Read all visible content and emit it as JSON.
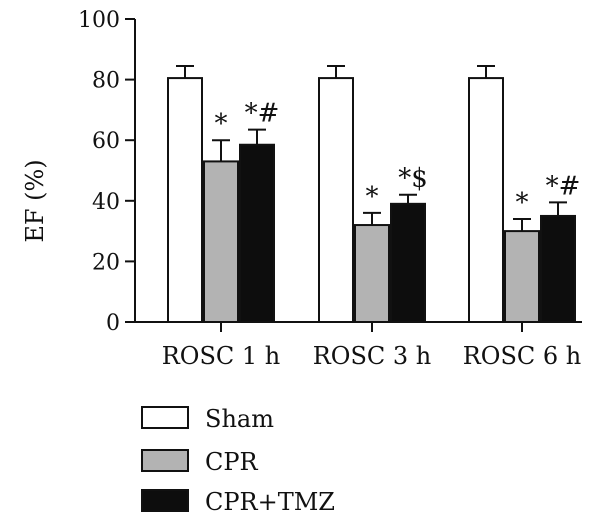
{
  "chart_data": {
    "type": "bar",
    "title": "",
    "xlabel": "",
    "ylabel": "EF (%)",
    "ylim": [
      0,
      100
    ],
    "yticks": [
      0,
      20,
      40,
      60,
      80,
      100
    ],
    "categories": [
      "ROSC 1 h",
      "ROSC 3 h",
      "ROSC 6 h"
    ],
    "series": [
      {
        "name": "Sham",
        "color": "#ffffff",
        "values": [
          80.5,
          80.5,
          80.5
        ],
        "errors": [
          4,
          4,
          4
        ],
        "annotations": [
          "",
          "",
          ""
        ]
      },
      {
        "name": "CPR",
        "color": "#b3b3b3",
        "values": [
          53,
          32,
          30
        ],
        "errors": [
          7,
          4,
          4
        ],
        "annotations": [
          "*",
          "*",
          "*"
        ]
      },
      {
        "name": "CPR+TMZ",
        "color": "#0d0d0d",
        "values": [
          58.5,
          39,
          35
        ],
        "errors": [
          5,
          3,
          4.5
        ],
        "annotations": [
          "*#",
          "*$",
          "*#"
        ]
      }
    ],
    "legend_position": "bottom-left",
    "grid": false
  }
}
